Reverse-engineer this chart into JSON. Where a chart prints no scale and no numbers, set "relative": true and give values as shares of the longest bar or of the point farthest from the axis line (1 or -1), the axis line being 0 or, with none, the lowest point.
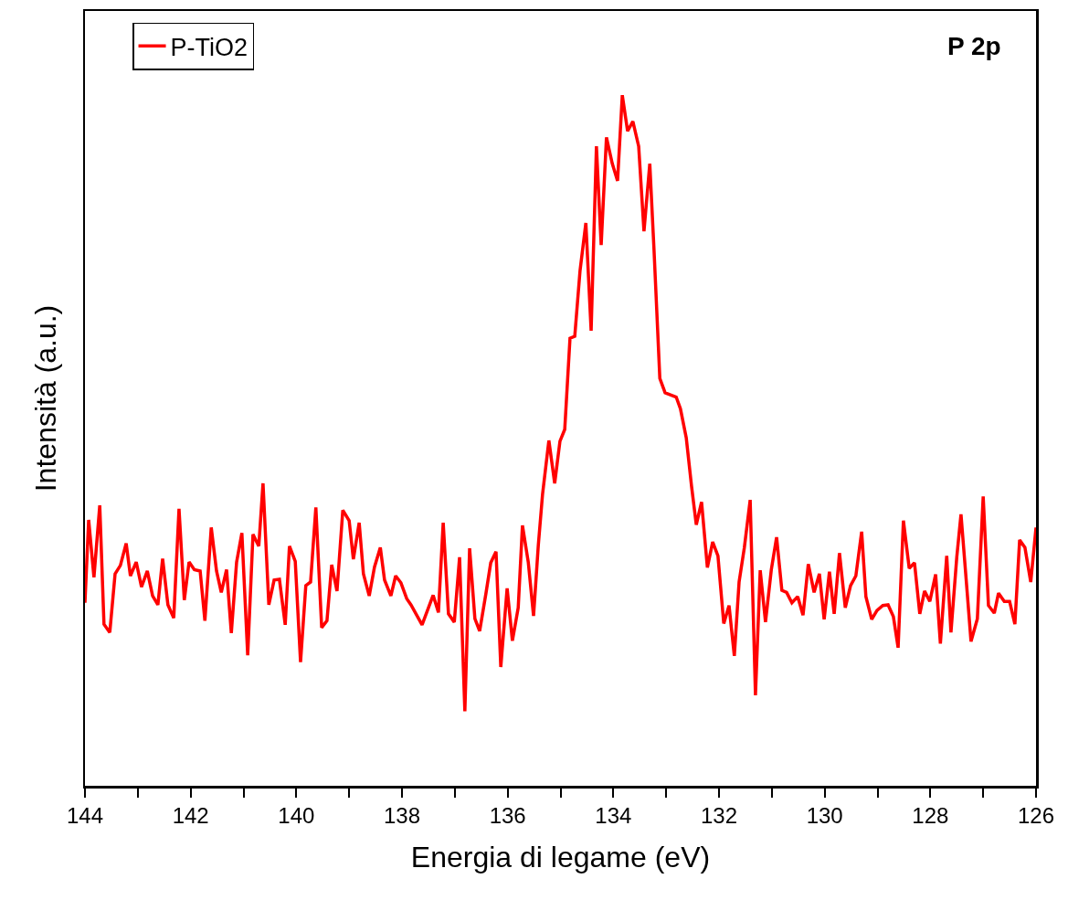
{
  "chart_data": {
    "type": "line",
    "relative": true,
    "xlabel": "Energia di legame (eV)",
    "ylabel": "Intensità (a.u.)",
    "annotations": [
      "P 2p"
    ],
    "legend": "top left",
    "grid": false,
    "marker": "none",
    "line_style": "solid",
    "xlim": [
      144,
      126
    ],
    "xticks": [
      144,
      {
        "value": 143,
        "label": null
      },
      142,
      {
        "value": 141,
        "label": null
      },
      140,
      {
        "value": 139,
        "label": null
      },
      138,
      {
        "value": 137,
        "label": null
      },
      136,
      {
        "value": 135,
        "label": null
      },
      134,
      {
        "value": 133,
        "label": null
      },
      132,
      {
        "value": 131,
        "label": null
      },
      130,
      {
        "value": 129,
        "label": null
      },
      128,
      {
        "value": 127,
        "label": null
      },
      126
    ],
    "series": [
      {
        "name": "P-TiO2",
        "color": "#ff0000",
        "x": [
          144.0,
          143.93,
          143.83,
          143.72,
          143.64,
          143.53,
          143.43,
          143.33,
          143.22,
          143.14,
          143.03,
          142.93,
          142.82,
          142.72,
          142.62,
          142.53,
          142.43,
          142.32,
          142.22,
          142.12,
          142.03,
          141.93,
          141.82,
          141.73,
          141.61,
          141.51,
          141.42,
          141.32,
          141.23,
          141.13,
          141.03,
          140.92,
          140.82,
          140.71,
          140.63,
          140.52,
          140.42,
          140.32,
          140.21,
          140.13,
          140.02,
          139.92,
          139.82,
          139.73,
          139.63,
          139.52,
          139.42,
          139.33,
          139.23,
          139.12,
          139.0,
          138.92,
          138.81,
          138.73,
          138.62,
          138.52,
          138.41,
          138.33,
          138.21,
          138.12,
          138.02,
          137.91,
          137.83,
          137.62,
          137.41,
          137.31,
          137.22,
          137.12,
          137.01,
          136.91,
          136.81,
          136.72,
          136.62,
          136.53,
          136.41,
          136.32,
          136.22,
          136.13,
          136.01,
          135.91,
          135.8,
          135.72,
          135.61,
          135.51,
          135.42,
          135.34,
          135.22,
          135.11,
          135.01,
          134.92,
          134.82,
          134.73,
          134.63,
          134.52,
          134.42,
          134.32,
          134.23,
          134.13,
          134.02,
          133.92,
          133.83,
          133.73,
          133.63,
          133.52,
          133.42,
          133.31,
          133.23,
          133.12,
          133.02,
          132.81,
          132.73,
          132.62,
          132.52,
          132.43,
          132.33,
          132.22,
          132.12,
          132.02,
          131.91,
          131.81,
          131.71,
          131.62,
          131.52,
          131.41,
          131.31,
          131.22,
          131.12,
          131.01,
          130.91,
          130.81,
          130.72,
          130.62,
          130.51,
          130.41,
          130.31,
          130.2,
          130.1,
          130.01,
          129.91,
          129.82,
          129.72,
          129.61,
          129.51,
          129.41,
          129.3,
          129.22,
          129.11,
          129.01,
          128.9,
          128.8,
          128.7,
          128.61,
          128.51,
          128.4,
          128.3,
          128.2,
          128.11,
          128.01,
          127.9,
          127.81,
          127.69,
          127.61,
          127.5,
          127.42,
          127.31,
          127.23,
          127.11,
          127.0,
          126.9,
          126.79,
          126.71,
          126.6,
          126.5,
          126.4,
          126.31,
          126.21,
          126.1,
          126.0
        ],
        "values": [
          0.265,
          0.385,
          0.302,
          0.406,
          0.234,
          0.222,
          0.307,
          0.319,
          0.351,
          0.304,
          0.324,
          0.288,
          0.311,
          0.275,
          0.262,
          0.329,
          0.262,
          0.243,
          0.401,
          0.269,
          0.324,
          0.313,
          0.311,
          0.239,
          0.374,
          0.311,
          0.28,
          0.313,
          0.221,
          0.324,
          0.366,
          0.189,
          0.364,
          0.347,
          0.438,
          0.262,
          0.298,
          0.299,
          0.233,
          0.347,
          0.325,
          0.179,
          0.29,
          0.295,
          0.403,
          0.229,
          0.239,
          0.32,
          0.282,
          0.399,
          0.384,
          0.328,
          0.381,
          0.307,
          0.275,
          0.317,
          0.345,
          0.298,
          0.275,
          0.304,
          0.294,
          0.271,
          0.262,
          0.233,
          0.276,
          0.251,
          0.381,
          0.249,
          0.237,
          0.331,
          0.108,
          0.344,
          0.242,
          0.224,
          0.279,
          0.323,
          0.339,
          0.172,
          0.286,
          0.21,
          0.258,
          0.377,
          0.324,
          0.246,
          0.348,
          0.422,
          0.5,
          0.438,
          0.499,
          0.516,
          0.648,
          0.651,
          0.746,
          0.815,
          0.659,
          0.926,
          0.783,
          0.939,
          0.901,
          0.876,
          1.0,
          0.948,
          0.962,
          0.926,
          0.803,
          0.901,
          0.776,
          0.59,
          0.569,
          0.563,
          0.546,
          0.504,
          0.434,
          0.378,
          0.411,
          0.316,
          0.353,
          0.333,
          0.235,
          0.261,
          0.188,
          0.295,
          0.345,
          0.414,
          0.131,
          0.312,
          0.237,
          0.313,
          0.36,
          0.283,
          0.28,
          0.265,
          0.274,
          0.247,
          0.321,
          0.28,
          0.307,
          0.241,
          0.31,
          0.249,
          0.337,
          0.258,
          0.29,
          0.304,
          0.368,
          0.274,
          0.241,
          0.254,
          0.261,
          0.262,
          0.245,
          0.2,
          0.384,
          0.315,
          0.323,
          0.249,
          0.282,
          0.267,
          0.306,
          0.206,
          0.333,
          0.222,
          0.331,
          0.393,
          0.287,
          0.209,
          0.242,
          0.419,
          0.261,
          0.25,
          0.279,
          0.267,
          0.267,
          0.234,
          0.356,
          0.345,
          0.295,
          0.374
        ]
      }
    ]
  }
}
